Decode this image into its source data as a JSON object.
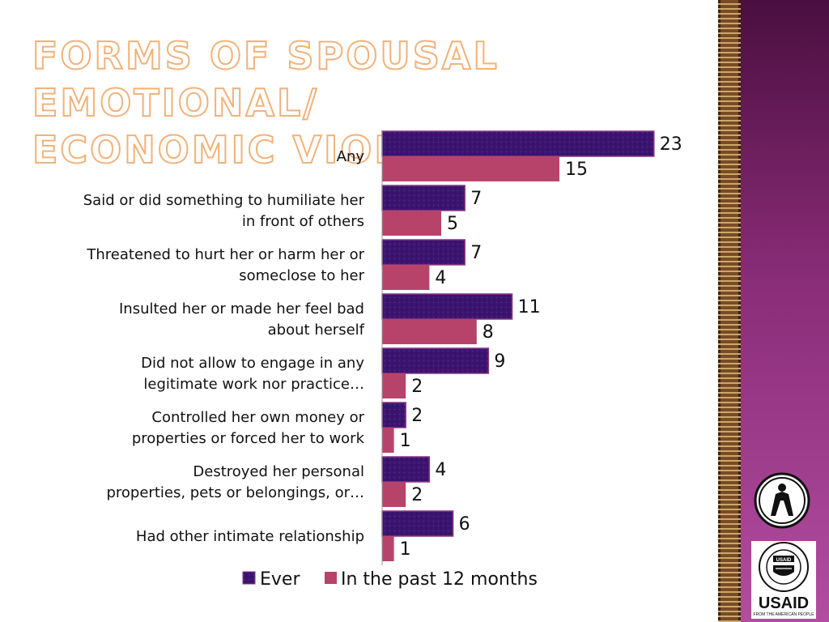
{
  "slide": {
    "title_line1": "Forms of Spousal Emotional/",
    "title_line2": "Economic Violence"
  },
  "logo": {
    "usaid_text": "USAID",
    "usaid_sub": "FROM THE AMERICAN PEOPLE",
    "seal_text": "UNITED STATES AGENCY INTERNATIONAL DEVELOPMENT"
  },
  "colors": {
    "ever": "#3b1470",
    "ever_border": "#8a3a82",
    "past12": "#b8436a",
    "axis": "#999999"
  },
  "chart_data": {
    "type": "bar",
    "orientation": "horizontal",
    "categories": [
      [
        "Any"
      ],
      [
        "Said or did something to humiliate her",
        "in front of others"
      ],
      [
        "Threatened to hurt her or harm her or",
        "someclose to her"
      ],
      [
        "Insulted her or made her feel bad",
        "about herself"
      ],
      [
        "Did not allow to engage in any",
        "legitimate work nor practice…"
      ],
      [
        "Controlled her own money or",
        "properties or forced her to work"
      ],
      [
        "Destroyed her personal",
        "properties, pets or belongings, or…"
      ],
      [
        "Had other intimate relationship"
      ]
    ],
    "series": [
      {
        "name": "Ever",
        "values": [
          23,
          7,
          7,
          11,
          9,
          2,
          4,
          6
        ]
      },
      {
        "name": "In the past 12 months",
        "values": [
          15,
          5,
          4,
          8,
          2,
          1,
          2,
          1
        ]
      }
    ],
    "xlim": [
      0,
      25
    ],
    "legend_position": "bottom",
    "grid": false
  }
}
